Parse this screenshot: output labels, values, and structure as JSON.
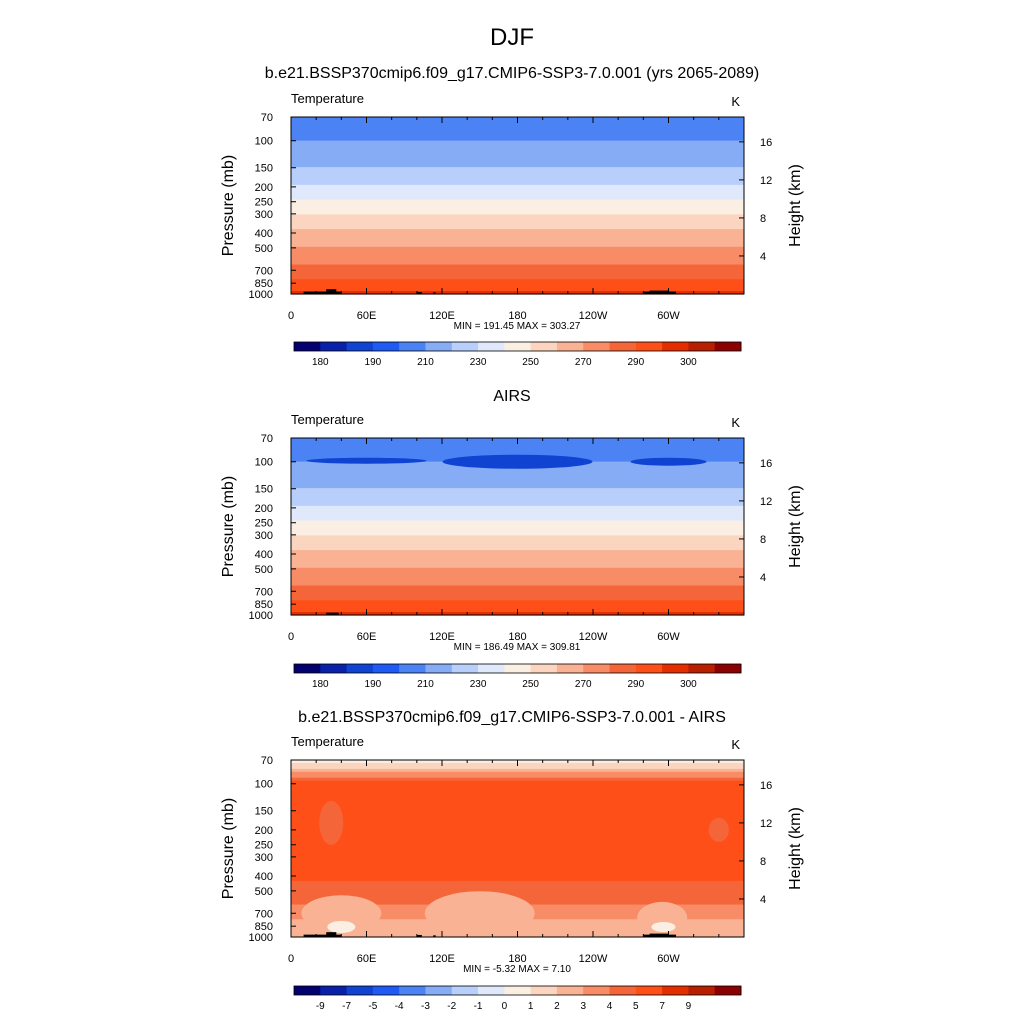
{
  "figure": {
    "season_title": "DJF"
  },
  "chart_data": [
    {
      "type": "heatmap",
      "title": "b.e21.BSSP370cmip6.f09_g17.CMIP6-SSP3-7.0.001 (yrs 2065-2089)",
      "left_label": "Temperature",
      "right_label": "K",
      "ylabel": "Pressure (mb)",
      "y2label": "Height (km)",
      "y_ticks": [
        "70",
        "100",
        "150",
        "200",
        "250",
        "300",
        "400",
        "500",
        "700",
        "850",
        "1000"
      ],
      "y2_ticks": [
        "16",
        "12",
        "8",
        "4"
      ],
      "x_ticks": [
        "0",
        "60E",
        "120E",
        "180",
        "120W",
        "60W"
      ],
      "minmax": "MIN = 191.45  MAX = 303.27",
      "colorbar_labels": [
        "180",
        "190",
        "210",
        "230",
        "250",
        "270",
        "290",
        "300"
      ],
      "colorbar_colors": [
        "#03016f",
        "#0921a8",
        "#1043d1",
        "#1f5af5",
        "#4c83f4",
        "#86acf6",
        "#b7cffa",
        "#dfe9fb",
        "#fbefe3",
        "#fbd5bf",
        "#f9b394",
        "#f78c66",
        "#f4663a",
        "#ff4f18",
        "#e52e00",
        "#b81f00",
        "#8b0000"
      ],
      "data_range": [
        191.45,
        303.27
      ]
    },
    {
      "type": "heatmap",
      "title": "AIRS",
      "left_label": "Temperature",
      "right_label": "K",
      "ylabel": "Pressure (mb)",
      "y2label": "Height (km)",
      "y_ticks": [
        "70",
        "100",
        "150",
        "200",
        "250",
        "300",
        "400",
        "500",
        "700",
        "850",
        "1000"
      ],
      "y2_ticks": [
        "16",
        "12",
        "8",
        "4"
      ],
      "x_ticks": [
        "0",
        "60E",
        "120E",
        "180",
        "120W",
        "60W"
      ],
      "minmax": "MIN = 186.49  MAX = 309.81",
      "colorbar_labels": [
        "180",
        "190",
        "210",
        "230",
        "250",
        "270",
        "290",
        "300"
      ],
      "colorbar_colors": [
        "#03016f",
        "#0921a8",
        "#1043d1",
        "#1f5af5",
        "#4c83f4",
        "#86acf6",
        "#b7cffa",
        "#dfe9fb",
        "#fbefe3",
        "#fbd5bf",
        "#f9b394",
        "#f78c66",
        "#f4663a",
        "#ff4f18",
        "#e52e00",
        "#b81f00",
        "#8b0000"
      ],
      "data_range": [
        186.49,
        309.81
      ]
    },
    {
      "type": "heatmap",
      "title": "b.e21.BSSP370cmip6.f09_g17.CMIP6-SSP3-7.0.001 - AIRS",
      "left_label": "Temperature",
      "right_label": "K",
      "ylabel": "Pressure (mb)",
      "y2label": "Height (km)",
      "y_ticks": [
        "70",
        "100",
        "150",
        "200",
        "250",
        "300",
        "400",
        "500",
        "700",
        "850",
        "1000"
      ],
      "y2_ticks": [
        "16",
        "12",
        "8",
        "4"
      ],
      "x_ticks": [
        "0",
        "60E",
        "120E",
        "180",
        "120W",
        "60W"
      ],
      "minmax": "MIN = -5.32  MAX =   7.10",
      "colorbar_labels": [
        "-9",
        "-7",
        "-5",
        "-4",
        "-3",
        "-2",
        "-1",
        "0",
        "1",
        "2",
        "3",
        "4",
        "5",
        "7",
        "9"
      ],
      "colorbar_colors": [
        "#03016f",
        "#0921a8",
        "#1043d1",
        "#1f5af5",
        "#4c83f4",
        "#86acf6",
        "#b7cffa",
        "#dfe9fb",
        "#fbefe3",
        "#fbd5bf",
        "#f9b394",
        "#f78c66",
        "#f4663a",
        "#ff4f18",
        "#e52e00",
        "#b81f00",
        "#8b0000"
      ],
      "data_range": [
        -5.32,
        7.1
      ]
    }
  ]
}
